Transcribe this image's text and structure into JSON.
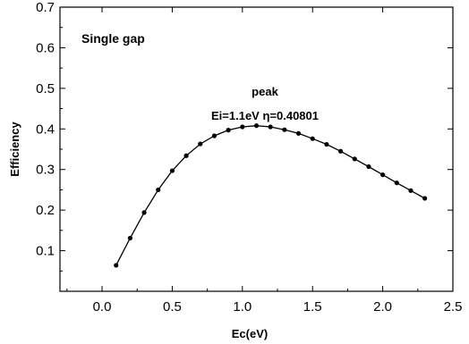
{
  "chart_data": {
    "type": "line",
    "title": "",
    "xlabel": "Ec(eV)",
    "ylabel": "Efficiency",
    "xlim": [
      -0.3,
      2.5
    ],
    "ylim": [
      0.0,
      0.7
    ],
    "xticks": [
      0.0,
      0.5,
      1.0,
      1.5,
      2.0,
      2.5
    ],
    "xtick_labels": [
      "0.0",
      "0.5",
      "1.0",
      "1.5",
      "2.0",
      "2.5"
    ],
    "yticks": [
      0.1,
      0.2,
      0.3,
      0.4,
      0.5,
      0.6,
      0.7
    ],
    "ytick_labels": [
      "0.1",
      "0.2",
      "0.3",
      "0.4",
      "0.5",
      "0.6",
      "0.7"
    ],
    "grid": false,
    "legend": "none",
    "series_color": "#000000",
    "x": [
      0.1,
      0.2,
      0.3,
      0.4,
      0.5,
      0.6,
      0.7,
      0.8,
      0.9,
      1.0,
      1.1,
      1.2,
      1.3,
      1.4,
      1.5,
      1.6,
      1.7,
      1.8,
      1.9,
      2.0,
      2.1,
      2.2,
      2.3
    ],
    "series": [
      {
        "values": [
          0.064,
          0.131,
          0.194,
          0.25,
          0.297,
          0.334,
          0.363,
          0.383,
          0.397,
          0.405,
          0.408,
          0.405,
          0.398,
          0.389,
          0.376,
          0.362,
          0.345,
          0.326,
          0.307,
          0.287,
          0.267,
          0.248,
          0.229
        ]
      }
    ],
    "annotations": {
      "panel_label": "Single gap",
      "peak_label": "peak",
      "peak_values": "Ei=1.1eV  η=0.40801"
    }
  }
}
